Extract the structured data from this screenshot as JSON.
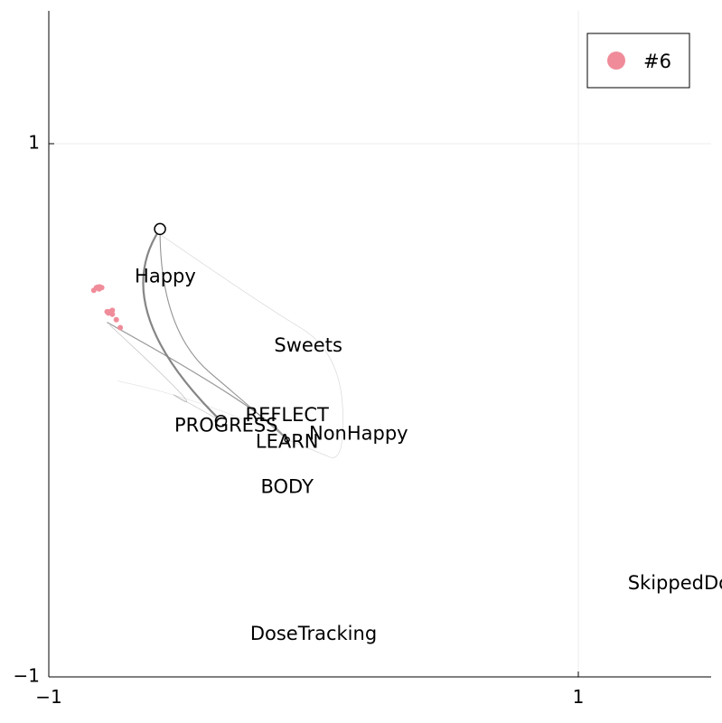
{
  "chart_data": {
    "type": "scatter",
    "title": "",
    "xlabel": "",
    "ylabel": "",
    "xlim": [
      -1,
      1.5
    ],
    "ylim": [
      -1,
      1.25
    ],
    "x_ticks": [
      {
        "value": -1,
        "label": "−1"
      },
      {
        "value": 1,
        "label": "1"
      }
    ],
    "y_ticks": [
      {
        "value": -1,
        "label": "−1"
      },
      {
        "value": 1,
        "label": "1"
      }
    ],
    "grid": true,
    "legend": {
      "position": "top-right",
      "entries": [
        {
          "label": "#6",
          "color": "#f08c9a"
        }
      ]
    },
    "colors": {
      "points": "#f08c9a",
      "trajectory": "#808080",
      "axis": "#000000",
      "grid": "#ececec"
    },
    "labels": [
      {
        "text": "Happy",
        "x": -0.56,
        "y": 0.5
      },
      {
        "text": "Sweets",
        "x": -0.02,
        "y": 0.24
      },
      {
        "text": "REFLECT",
        "x": -0.1,
        "y": -0.02
      },
      {
        "text": "PROGRESS",
        "x": -0.33,
        "y": -0.06
      },
      {
        "text": "NonHappy",
        "x": 0.17,
        "y": -0.09
      },
      {
        "text": "LEARN",
        "x": -0.1,
        "y": -0.12
      },
      {
        "text": "BODY",
        "x": -0.1,
        "y": -0.29
      },
      {
        "text": "SkippedDo",
        "x": 1.38,
        "y": -0.65
      },
      {
        "text": "DoseTracking",
        "x": 0.0,
        "y": -0.84
      }
    ],
    "nodes": [
      {
        "x": -0.58,
        "y": 0.68,
        "r": "large"
      },
      {
        "x": -0.35,
        "y": -0.04,
        "r": "large"
      },
      {
        "x": -0.1,
        "y": -0.11,
        "r": "small"
      }
    ],
    "points": [
      {
        "x": -0.83,
        "y": 0.45
      },
      {
        "x": -0.82,
        "y": 0.46
      },
      {
        "x": -0.815,
        "y": 0.462
      },
      {
        "x": -0.808,
        "y": 0.463
      },
      {
        "x": -0.8,
        "y": 0.46
      },
      {
        "x": -0.81,
        "y": 0.455
      },
      {
        "x": -0.78,
        "y": 0.37
      },
      {
        "x": -0.77,
        "y": 0.37
      },
      {
        "x": -0.76,
        "y": 0.375
      },
      {
        "x": -0.775,
        "y": 0.365
      },
      {
        "x": -0.76,
        "y": 0.36
      },
      {
        "x": -0.745,
        "y": 0.34
      },
      {
        "x": -0.73,
        "y": 0.31
      }
    ],
    "paths": [
      {
        "points": [
          [
            -0.58,
            0.68
          ],
          [
            -0.78,
            0.38
          ],
          [
            -0.35,
            -0.04
          ]
        ],
        "width": 2.2,
        "opacity": 0.95
      },
      {
        "points": [
          [
            -0.58,
            0.68
          ],
          [
            -0.58,
            0.3
          ],
          [
            -0.2,
            -0.02
          ],
          [
            -0.1,
            -0.11
          ]
        ],
        "width": 1.1,
        "opacity": 0.85
      },
      {
        "points": [
          [
            -0.58,
            0.66
          ],
          [
            -0.2,
            0.4
          ],
          [
            0.1,
            0.22
          ],
          [
            0.12,
            -0.2
          ],
          [
            0.0,
            -0.15
          ],
          [
            -0.1,
            -0.11
          ]
        ],
        "width": 0.6,
        "opacity": 0.35
      },
      {
        "points": [
          [
            -0.78,
            0.33
          ],
          [
            -0.18,
            0.0
          ],
          [
            -0.1,
            -0.11
          ]
        ],
        "width": 1.2,
        "opacity": 0.8
      },
      {
        "points": [
          [
            -0.77,
            0.32
          ],
          [
            -0.4,
            -0.02
          ],
          [
            -0.6,
            0.1
          ],
          [
            -0.35,
            -0.04
          ]
        ],
        "width": 0.7,
        "opacity": 0.5
      },
      {
        "points": [
          [
            -0.74,
            0.11
          ],
          [
            -0.4,
            0.04
          ],
          [
            -0.1,
            -0.11
          ]
        ],
        "width": 0.5,
        "opacity": 0.3
      }
    ]
  }
}
